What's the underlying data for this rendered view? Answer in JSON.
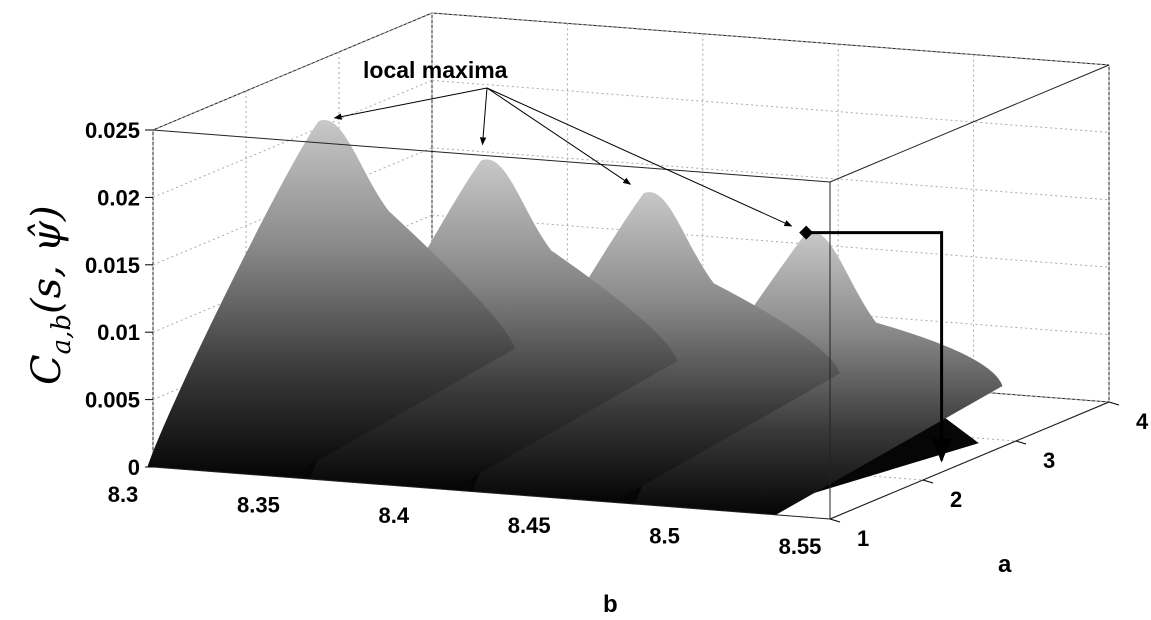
{
  "chart_data": {
    "type": "surface",
    "xlabel": "b",
    "ylabel": "a",
    "zlabel": "C_{a,b}(s, ψ̂)",
    "zlabel_parts": {
      "main": "C",
      "sub": "a,b",
      "args": "(s, ψ̂)"
    },
    "x_ticks": [
      "8.3",
      "8.35",
      "8.4",
      "8.45",
      "8.5",
      "8.55"
    ],
    "y_ticks": [
      "1",
      "2",
      "3",
      "4"
    ],
    "z_ticks": [
      "0",
      "0.005",
      "0.01",
      "0.015",
      "0.02",
      "0.025"
    ],
    "xlim": [
      8.3,
      8.55
    ],
    "ylim": [
      1,
      4
    ],
    "zlim": [
      0,
      0.025
    ],
    "grid": true,
    "colormap": "grayscale",
    "peaks": [
      {
        "b": 8.32,
        "a": 2.2,
        "value": 0.0225
      },
      {
        "b": 8.38,
        "a": 2.2,
        "value": 0.0205
      },
      {
        "b": 8.44,
        "a": 2.2,
        "value": 0.019
      },
      {
        "b": 8.5,
        "a": 2.2,
        "value": 0.017
      }
    ],
    "annotation": {
      "text": "local maxima"
    },
    "highlight_point": {
      "b": 8.5,
      "a": 2.2,
      "value": 0.017
    }
  }
}
